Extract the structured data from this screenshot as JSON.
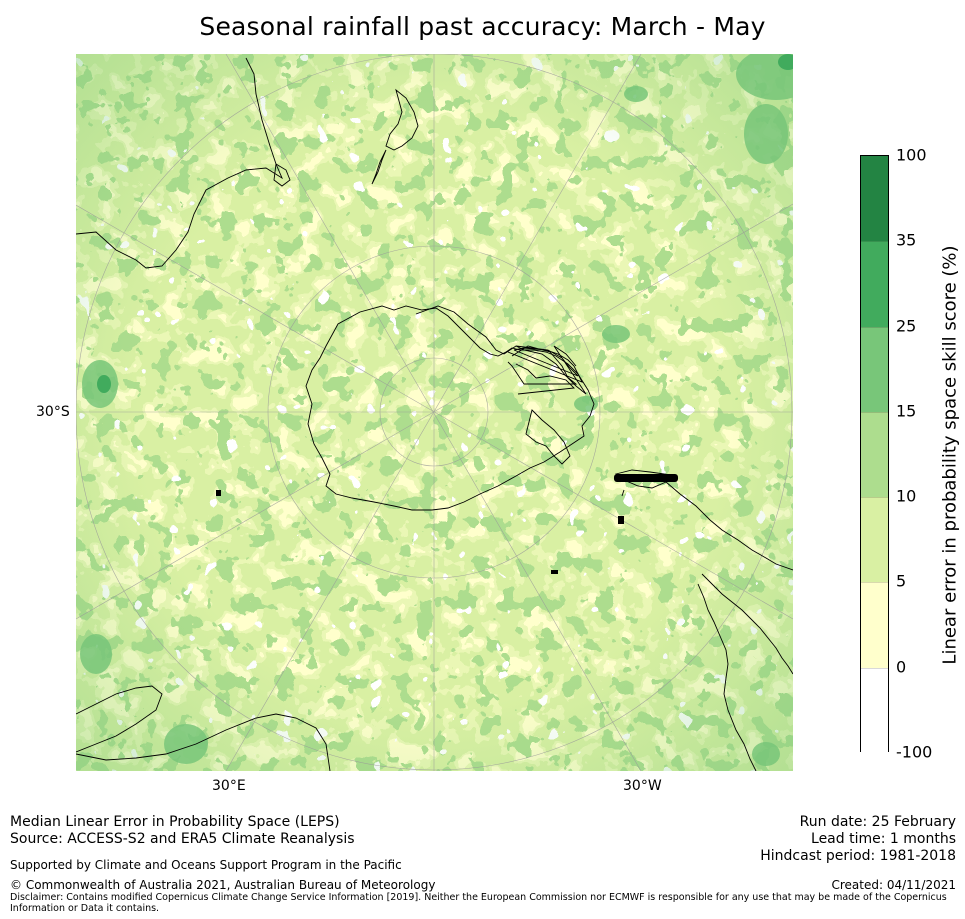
{
  "title": "Seasonal rainfall past accuracy: March - May",
  "map": {
    "lat_label": "30°S",
    "lon_labels": [
      "30°E",
      "30°W"
    ]
  },
  "colorbar": {
    "label": "Linear error in probability space skill score (%)",
    "ticks": [
      "100",
      "35",
      "25",
      "15",
      "10",
      "5",
      "0",
      "-100"
    ],
    "bins": [
      {
        "from": 35,
        "to": 100,
        "color": "#238443"
      },
      {
        "from": 25,
        "to": 35,
        "color": "#41ab5d"
      },
      {
        "from": 15,
        "to": 25,
        "color": "#78c679"
      },
      {
        "from": 10,
        "to": 15,
        "color": "#addd8e"
      },
      {
        "from": 5,
        "to": 10,
        "color": "#d9f0a3"
      },
      {
        "from": 0,
        "to": 5,
        "color": "#ffffcc"
      },
      {
        "from": -100,
        "to": 0,
        "color": "#ffffff"
      }
    ]
  },
  "footer": {
    "left1": "Median Linear Error in Probability Space (LEPS)",
    "left2": "Source: ACCESS-S2 and ERA5 Climate Reanalysis",
    "support": "Supported by Climate and Oceans Support Program in the Pacific",
    "copyright": "© Commonwealth of Australia 2021, Australian Bureau of Meteorology",
    "disclaimer1": "Disclaimer: Contains modified Copernicus Climate Change Service Information [2019]. Neither the European Commission nor ECMWF is responsible for any use that may be made of the Copernicus",
    "disclaimer2": "Information or Data it contains.",
    "run_date": "Run date: 25 February",
    "lead_time": "Lead time: 1 months",
    "hindcast": "Hindcast period: 1981-2018",
    "created": "Created: 04/11/2021"
  }
}
